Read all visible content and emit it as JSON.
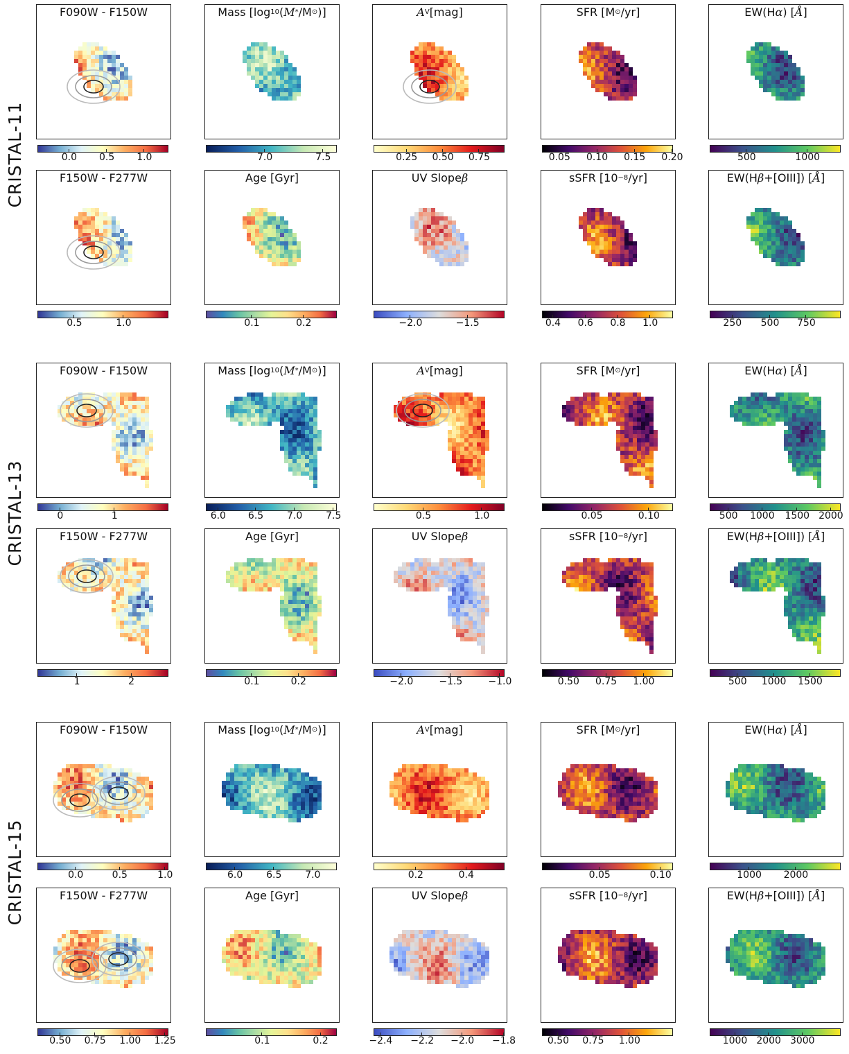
{
  "rows": [
    {
      "label": "CRISTAL-11",
      "panels": [
        {
          "title": "F090W - F150W",
          "cmap": "rdylbu",
          "ticks": [
            "0.0",
            "0.5",
            "1.0"
          ],
          "tickpos": [
            0.24,
            0.53,
            0.82
          ],
          "shape": "s11",
          "contour": true
        },
        {
          "title_html": "Mass [log<sub>10</sub>(<i>M</i><sub>*</sub>/M<sub>⊙</sub>)]",
          "cmap": "ylgnbu",
          "ticks": [
            "7.0",
            "7.5"
          ],
          "tickpos": [
            0.45,
            0.9
          ],
          "shape": "s11"
        },
        {
          "title_html": "<i>A</i><sub>V</sub> [mag]",
          "cmap": "ylorrd",
          "ticks": [
            "0.25",
            "0.50",
            "0.75"
          ],
          "tickpos": [
            0.25,
            0.53,
            0.81
          ],
          "shape": "s11",
          "contour": true
        },
        {
          "title_html": "SFR [M<sub>⊙</sub>/yr]",
          "cmap": "inferno",
          "ticks": [
            "0.05",
            "0.10",
            "0.15",
            "0.20"
          ],
          "tickpos": [
            0.13,
            0.42,
            0.71,
            1.0
          ],
          "shape": "s11"
        },
        {
          "title_html": "EW(H<i>α</i>) [<i>Å</i>]",
          "cmap": "viridis",
          "ticks": [
            "500",
            "1000"
          ],
          "tickpos": [
            0.28,
            0.75
          ],
          "shape": "s11"
        }
      ]
    },
    {
      "panels": [
        {
          "title": "F150W - F277W",
          "cmap": "rdylbu",
          "ticks": [
            "0.5",
            "1.0"
          ],
          "tickpos": [
            0.28,
            0.66
          ],
          "shape": "s11",
          "contour": true
        },
        {
          "title": "Age [Gyr]",
          "cmap": "spectral",
          "ticks": [
            "0.1",
            "0.2"
          ],
          "tickpos": [
            0.35,
            0.75
          ],
          "shape": "s11"
        },
        {
          "title_html": "UV Slope <i>β</i>",
          "cmap": "coolwarm",
          "ticks": [
            "−2.0",
            "−1.5"
          ],
          "tickpos": [
            0.28,
            0.72
          ],
          "shape": "s11"
        },
        {
          "title_html": "sSFR [10<sup>−8</sup>/yr]",
          "cmap": "inferno",
          "ticks": [
            "0.4",
            "0.6",
            "0.8",
            "1.0"
          ],
          "tickpos": [
            0.08,
            0.33,
            0.58,
            0.83
          ],
          "shape": "s11"
        },
        {
          "title_html": "EW(H<i>β</i>+[OIII]) [<i>Å</i>]",
          "cmap": "viridis",
          "ticks": [
            "250",
            "500",
            "750"
          ],
          "tickpos": [
            0.17,
            0.46,
            0.74
          ],
          "shape": "s11"
        }
      ]
    },
    {
      "label": "CRISTAL-13",
      "panels": [
        {
          "title": "F090W - F150W",
          "cmap": "rdylbu",
          "ticks": [
            "0",
            "1"
          ],
          "tickpos": [
            0.17,
            0.59
          ],
          "shape": "s13",
          "contour": true
        },
        {
          "title_html": "Mass [log<sub>10</sub>(<i>M</i><sub>*</sub>/M<sub>⊙</sub>)]",
          "cmap": "ylgnbu",
          "ticks": [
            "6.0",
            "6.5",
            "7.0",
            "7.5"
          ],
          "tickpos": [
            0.09,
            0.38,
            0.68,
            0.98
          ],
          "shape": "s13"
        },
        {
          "title_html": "<i>A</i><sub>V</sub> [mag]",
          "cmap": "ylorrd",
          "ticks": [
            "0.5",
            "1.0"
          ],
          "tickpos": [
            0.38,
            0.83
          ],
          "shape": "s13",
          "contour": true
        },
        {
          "title_html": "SFR [M<sub>⊙</sub>/yr]",
          "cmap": "inferno",
          "ticks": [
            "0.05",
            "0.10"
          ],
          "tickpos": [
            0.38,
            0.82
          ],
          "shape": "s13"
        },
        {
          "title_html": "EW(H<i>α</i>) [<i>Å</i>]",
          "cmap": "viridis",
          "ticks": [
            "500",
            "1000",
            "1500",
            "2000"
          ],
          "tickpos": [
            0.14,
            0.4,
            0.67,
            0.93
          ],
          "shape": "s13"
        }
      ]
    },
    {
      "panels": [
        {
          "title": "F150W - F277W",
          "cmap": "rdylbu",
          "ticks": [
            "1",
            "2"
          ],
          "tickpos": [
            0.3,
            0.72
          ],
          "shape": "s13",
          "contour": true
        },
        {
          "title": "Age [Gyr]",
          "cmap": "spectral",
          "ticks": [
            "0.1",
            "0.2"
          ],
          "tickpos": [
            0.35,
            0.71
          ],
          "shape": "s13"
        },
        {
          "title_html": "UV Slope <i>β</i>",
          "cmap": "coolwarm",
          "ticks": [
            "−2.0",
            "−1.5",
            "−1.0"
          ],
          "tickpos": [
            0.21,
            0.59,
            0.97
          ],
          "shape": "s13"
        },
        {
          "title_html": "sSFR [10<sup>−8</sup>/yr]",
          "cmap": "inferno",
          "ticks": [
            "0.50",
            "0.75",
            "1.00"
          ],
          "tickpos": [
            0.2,
            0.49,
            0.78
          ],
          "shape": "s13"
        },
        {
          "title_html": "EW(H<i>β</i>+[OIII]) [<i>Å</i>]",
          "cmap": "viridis",
          "ticks": [
            "500",
            "1000",
            "1500"
          ],
          "tickpos": [
            0.21,
            0.49,
            0.77
          ],
          "shape": "s13"
        }
      ]
    },
    {
      "label": "CRISTAL-15",
      "panels": [
        {
          "title": "F090W - F150W",
          "cmap": "rdylbu",
          "ticks": [
            "0.0",
            "0.5",
            "1.0"
          ],
          "tickpos": [
            0.29,
            0.63,
            0.98
          ],
          "shape": "s15",
          "contour": true
        },
        {
          "title_html": "Mass [log<sub>10</sub>(<i>M</i><sub>*</sub>/M<sub>⊙</sub>)]",
          "cmap": "ylgnbu",
          "ticks": [
            "6.0",
            "6.5",
            "7.0"
          ],
          "tickpos": [
            0.22,
            0.52,
            0.82
          ],
          "shape": "s15"
        },
        {
          "title_html": "<i>A</i><sub>V</sub> [mag]",
          "cmap": "ylorrd",
          "ticks": [
            "0.2",
            "0.4"
          ],
          "tickpos": [
            0.32,
            0.71
          ],
          "shape": "s15"
        },
        {
          "title_html": "SFR [M<sub>⊙</sub>/yr]",
          "cmap": "inferno",
          "ticks": [
            "0.05",
            "0.10"
          ],
          "tickpos": [
            0.44,
            0.91
          ],
          "shape": "s15"
        },
        {
          "title_html": "EW(H<i>α</i>) [<i>Å</i>]",
          "cmap": "viridis",
          "ticks": [
            "1000",
            "2000"
          ],
          "tickpos": [
            0.3,
            0.66
          ],
          "shape": "s15"
        }
      ]
    },
    {
      "panels": [
        {
          "title": "F150W - F277W",
          "cmap": "rdylbu",
          "ticks": [
            "0.50",
            "0.75",
            "1.00",
            "1.25"
          ],
          "tickpos": [
            0.17,
            0.44,
            0.71,
            0.98
          ],
          "shape": "s15",
          "contour": true
        },
        {
          "title": "Age [Gyr]",
          "cmap": "spectral",
          "ticks": [
            "0.1",
            "0.2"
          ],
          "tickpos": [
            0.43,
            0.88
          ],
          "shape": "s15"
        },
        {
          "title_html": "UV Slope <i>β</i>",
          "cmap": "coolwarm",
          "ticks": [
            "−2.4",
            "−2.2",
            "−2.0",
            "−1.8"
          ],
          "tickpos": [
            0.05,
            0.37,
            0.68,
            1.0
          ],
          "shape": "s15"
        },
        {
          "title_html": "sSFR [10<sup>−8</sup>/yr]",
          "cmap": "inferno",
          "ticks": [
            "0.50",
            "0.75",
            "1.00"
          ],
          "tickpos": [
            0.12,
            0.39,
            0.67
          ],
          "shape": "s15"
        },
        {
          "title_html": "EW(H<i>β</i>+[OIII]) [<i>Å</i>]",
          "cmap": "viridis",
          "ticks": [
            "1000",
            "2000",
            "3000"
          ],
          "tickpos": [
            0.19,
            0.45,
            0.71
          ],
          "shape": "s15"
        }
      ]
    }
  ],
  "colormaps": {
    "rdylbu": [
      "#313695",
      "#74add1",
      "#e0f3f8",
      "#ffffbf",
      "#fdae61",
      "#f46d43",
      "#a50026"
    ],
    "ylgnbu": [
      "#081d58",
      "#225ea8",
      "#41b6c4",
      "#c7e9b4",
      "#ffffd9"
    ],
    "ylorrd": [
      "#ffffcc",
      "#fed976",
      "#fd8d3c",
      "#e31a1c",
      "#800026"
    ],
    "inferno": [
      "#000004",
      "#420a68",
      "#932667",
      "#dd513a",
      "#fca50a",
      "#fcffa4"
    ],
    "viridis": [
      "#440154",
      "#3b528b",
      "#21918c",
      "#5ec962",
      "#fde725"
    ],
    "spectral": [
      "#5e4fa2",
      "#3288bd",
      "#66c2a5",
      "#abdda4",
      "#e6f598",
      "#fee08b",
      "#fdae61",
      "#f46d43",
      "#9e0142"
    ],
    "coolwarm": [
      "#3b4cc0",
      "#8db0fe",
      "#dddddd",
      "#f4987a",
      "#b40426"
    ]
  }
}
